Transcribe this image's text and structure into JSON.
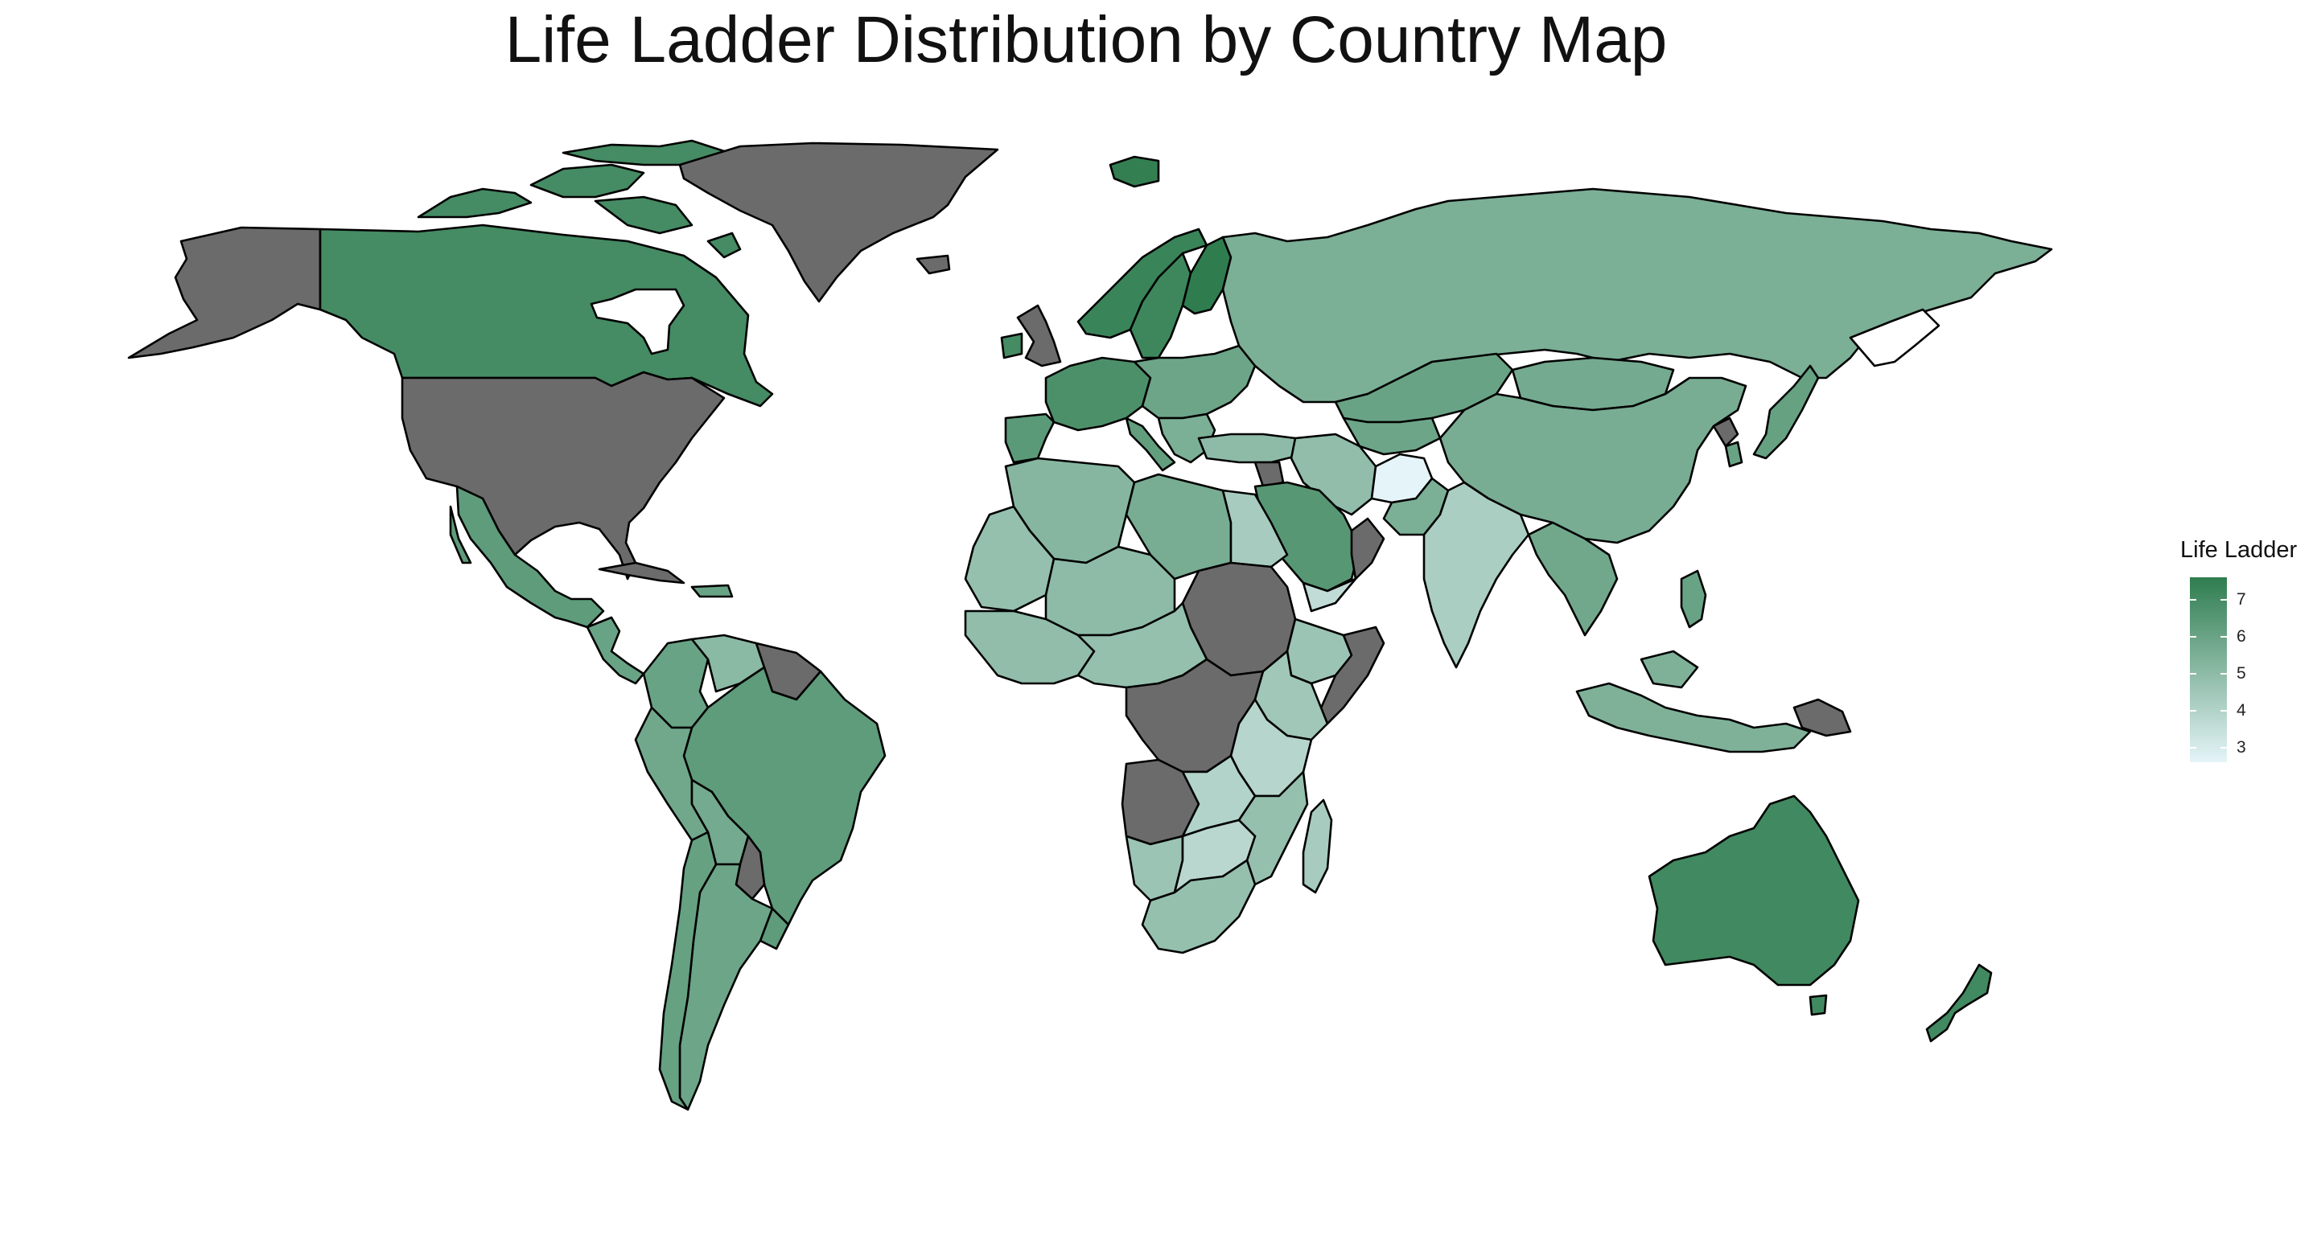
{
  "title": "Life Ladder Distribution by Country Map",
  "legend": {
    "title": "Life Ladder",
    "ticks": [
      "7",
      "6",
      "5",
      "4",
      "3"
    ],
    "min": 2.6,
    "max": 7.6,
    "color_low": "#e5f4f8",
    "color_high": "#2f7d4f",
    "no_data_color": "#6b6b6b"
  },
  "chart_data": {
    "type": "choropleth",
    "title": "Life Ladder Distribution by Country Map",
    "legend_title": "Life Ladder",
    "scale": {
      "min": 2.6,
      "max": 7.6,
      "ticks": [
        3,
        4,
        5,
        6,
        7
      ]
    },
    "regions": [
      {
        "name": "Canada",
        "value": 7.0
      },
      {
        "name": "United States",
        "value": null
      },
      {
        "name": "Alaska",
        "value": null
      },
      {
        "name": "Greenland",
        "value": null
      },
      {
        "name": "Mexico",
        "value": 6.3
      },
      {
        "name": "Central America",
        "value": 6.0
      },
      {
        "name": "Cuba",
        "value": null
      },
      {
        "name": "Colombia",
        "value": 6.0
      },
      {
        "name": "Venezuela",
        "value": 5.1
      },
      {
        "name": "Guianas",
        "value": null
      },
      {
        "name": "Brazil",
        "value": 6.3
      },
      {
        "name": "Peru",
        "value": 5.8
      },
      {
        "name": "Bolivia",
        "value": 5.7
      },
      {
        "name": "Paraguay",
        "value": null
      },
      {
        "name": "Chile",
        "value": 6.1
      },
      {
        "name": "Argentina",
        "value": 5.9
      },
      {
        "name": "Uruguay",
        "value": 6.3
      },
      {
        "name": "Iceland",
        "value": 7.5
      },
      {
        "name": "Norway",
        "value": 7.3
      },
      {
        "name": "Sweden",
        "value": 7.2
      },
      {
        "name": "Finland",
        "value": 7.6
      },
      {
        "name": "United Kingdom",
        "value": null
      },
      {
        "name": "Ireland",
        "value": 7.0
      },
      {
        "name": "Western Europe",
        "value": 6.8
      },
      {
        "name": "Iberia",
        "value": 6.4
      },
      {
        "name": "Italy",
        "value": 6.2
      },
      {
        "name": "Eastern Europe",
        "value": 5.9
      },
      {
        "name": "Balkans",
        "value": 5.5
      },
      {
        "name": "Turkey",
        "value": 5.0
      },
      {
        "name": "Russia",
        "value": 5.5
      },
      {
        "name": "Kazakhstan",
        "value": 6.0
      },
      {
        "name": "Central Asia",
        "value": 5.9
      },
      {
        "name": "Mongolia",
        "value": 5.7
      },
      {
        "name": "China",
        "value": 5.6
      },
      {
        "name": "North Korea",
        "value": null
      },
      {
        "name": "South Korea",
        "value": 6.0
      },
      {
        "name": "Japan",
        "value": 6.1
      },
      {
        "name": "Iran",
        "value": 4.9
      },
      {
        "name": "Afghanistan",
        "value": 2.6
      },
      {
        "name": "Pakistan",
        "value": 5.5
      },
      {
        "name": "India",
        "value": 4.2
      },
      {
        "name": "Southeast Asia",
        "value": 5.8
      },
      {
        "name": "Philippines",
        "value": 6.0
      },
      {
        "name": "Indonesia",
        "value": 5.4
      },
      {
        "name": "Papua New Guinea",
        "value": null
      },
      {
        "name": "Saudi Arabia",
        "value": 6.5
      },
      {
        "name": "Oman",
        "value": null
      },
      {
        "name": "Yemen",
        "value": 3.6
      },
      {
        "name": "Syria",
        "value": null
      },
      {
        "name": "Morocco & Algeria",
        "value": 5.2
      },
      {
        "name": "Western Sahara & Mauritania",
        "value": 4.8
      },
      {
        "name": "Mali & Niger",
        "value": 5.0
      },
      {
        "name": "Libya",
        "value": 5.6
      },
      {
        "name": "Egypt",
        "value": 4.3
      },
      {
        "name": "Sudan & South Sudan",
        "value": null
      },
      {
        "name": "West Africa",
        "value": 4.9
      },
      {
        "name": "Nigeria & Chad",
        "value": 4.8
      },
      {
        "name": "Ethiopia",
        "value": 4.6
      },
      {
        "name": "Somalia",
        "value": null
      },
      {
        "name": "Central Africa",
        "value": null
      },
      {
        "name": "Kenya & Uganda",
        "value": 4.5
      },
      {
        "name": "Tanzania",
        "value": 3.9
      },
      {
        "name": "Angola",
        "value": null
      },
      {
        "name": "Zambia",
        "value": 4.0
      },
      {
        "name": "Mozambique",
        "value": 4.8
      },
      {
        "name": "Namibia",
        "value": 4.6
      },
      {
        "name": "Botswana & Zimbabwe",
        "value": 3.8
      },
      {
        "name": "South Africa",
        "value": 4.8
      },
      {
        "name": "Madagascar",
        "value": 4.3
      },
      {
        "name": "Australia",
        "value": 7.1
      },
      {
        "name": "New Zealand",
        "value": 7.1
      }
    ]
  }
}
